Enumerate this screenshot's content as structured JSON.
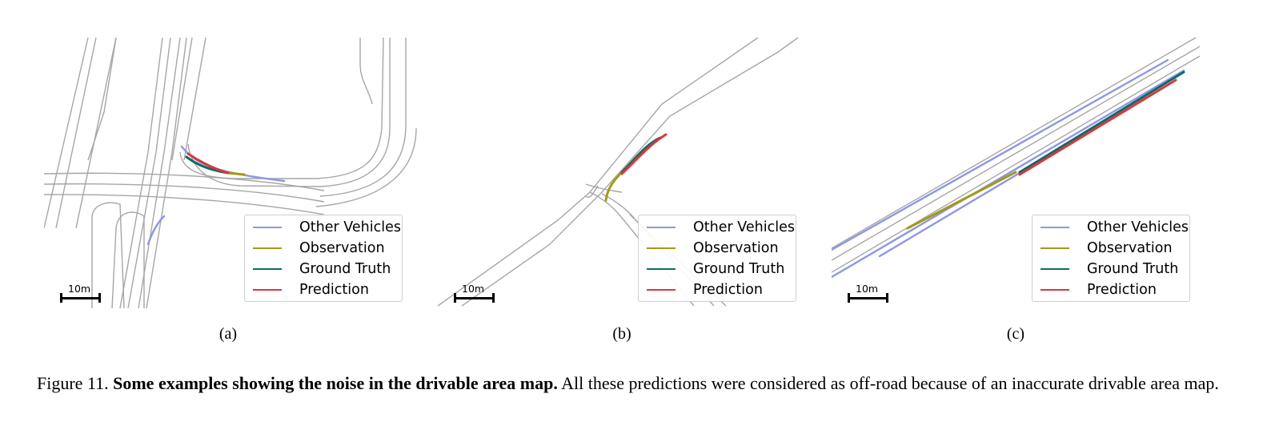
{
  "figure": {
    "caption_label": "Figure 11.",
    "caption_bold": "Some examples showing the noise in the drivable area map.",
    "caption_rest": "All these predictions were considered as off-road because of an inaccurate drivable area map."
  },
  "legend": {
    "items": [
      {
        "label": "Other Vehicles",
        "color": "#8f96e6"
      },
      {
        "label": "Observation",
        "color": "#a39a16"
      },
      {
        "label": "Ground Truth",
        "color": "#0f6b63"
      },
      {
        "label": "Prediction",
        "color": "#d9383d"
      }
    ]
  },
  "panels": [
    {
      "label": "(a)",
      "scale_label": "10m"
    },
    {
      "label": "(b)",
      "scale_label": "10m"
    },
    {
      "label": "(c)",
      "scale_label": "10m"
    }
  ],
  "colors": {
    "road": "#a6a6a6",
    "other_vehicles": "#8f96e6",
    "observation": "#a39a16",
    "ground_truth": "#0f6b63",
    "prediction": "#d9383d"
  }
}
